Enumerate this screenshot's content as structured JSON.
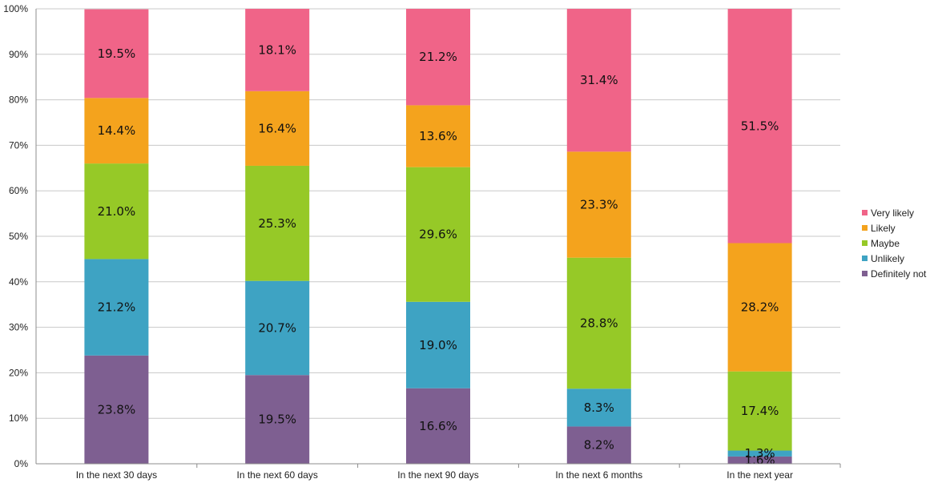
{
  "chart_data": {
    "type": "bar",
    "stacked": true,
    "categories": [
      "In the next 30 days",
      "In the next 60 days",
      "In the next 90 days",
      "In the next 6 months",
      "In the next year"
    ],
    "series": [
      {
        "name": "Definitely not",
        "color": "#7e5f91",
        "values": [
          23.8,
          19.5,
          16.6,
          8.2,
          1.6
        ]
      },
      {
        "name": "Unlikely",
        "color": "#3ea3c3",
        "values": [
          21.2,
          20.7,
          19.0,
          8.3,
          1.3
        ]
      },
      {
        "name": "Maybe",
        "color": "#96c927",
        "values": [
          21.0,
          25.3,
          29.6,
          28.8,
          17.4
        ]
      },
      {
        "name": "Likely",
        "color": "#f4a31d",
        "values": [
          14.4,
          16.4,
          13.6,
          23.3,
          28.2
        ]
      },
      {
        "name": "Very likely",
        "color": "#f06488",
        "values": [
          19.5,
          18.1,
          21.2,
          31.4,
          51.5
        ]
      }
    ],
    "y_ticks": [
      "0%",
      "10%",
      "20%",
      "30%",
      "40%",
      "50%",
      "60%",
      "70%",
      "80%",
      "90%",
      "100%"
    ],
    "ylim": [
      0,
      100
    ],
    "value_format": "percent_1dp",
    "grid": true,
    "legend_position": "right"
  }
}
